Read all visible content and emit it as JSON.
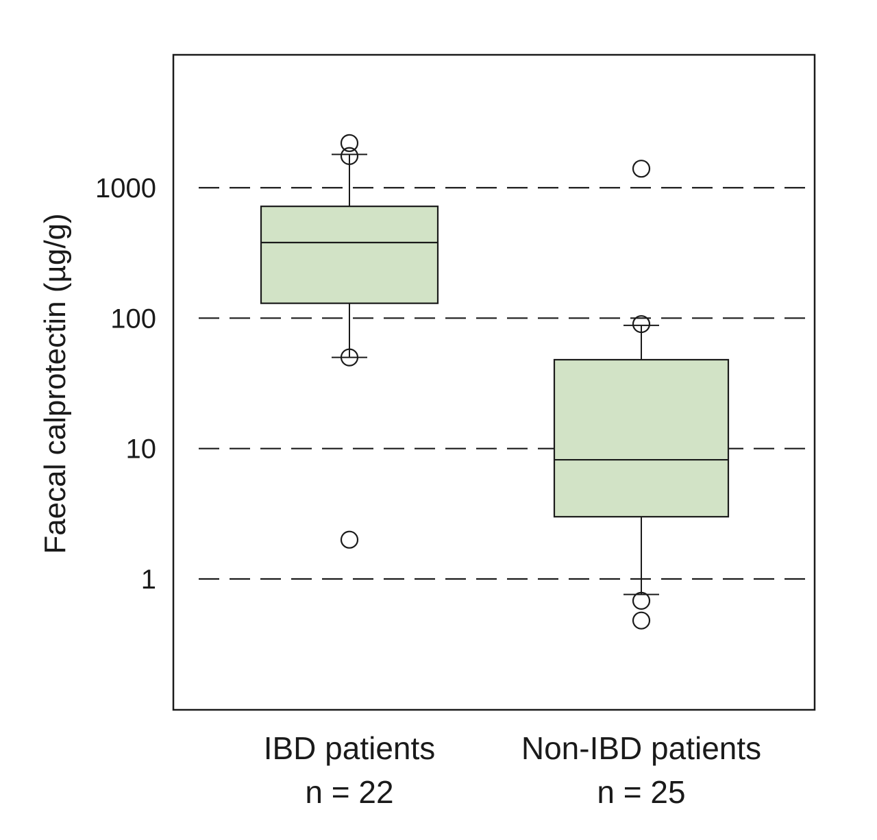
{
  "chart_data": {
    "type": "box",
    "ylabel": "Faecal calprotectin (µg/g)",
    "yscale": "log",
    "ylim": [
      0.1,
      10000
    ],
    "yticks": [
      1,
      10,
      100,
      1000
    ],
    "ytick_labels": [
      "1",
      "10",
      "100",
      "1000"
    ],
    "grid": "dashed horizontal at y ticks",
    "box_color": "#d2e3c6",
    "categories": [
      {
        "label": "IBD patients",
        "n_label": "n = 22"
      },
      {
        "label": "Non-IBD patients",
        "n_label": "n = 25"
      }
    ],
    "boxes": [
      {
        "q1": 130,
        "median": 380,
        "q3": 720,
        "whisker_low": 50,
        "whisker_high": 1800,
        "outliers": [
          2200,
          1750,
          50,
          2
        ]
      },
      {
        "q1": 3,
        "median": 8.2,
        "q3": 48,
        "whisker_low": 0.76,
        "whisker_high": 88,
        "outliers": [
          1400,
          90,
          0.68,
          0.48
        ]
      }
    ]
  }
}
